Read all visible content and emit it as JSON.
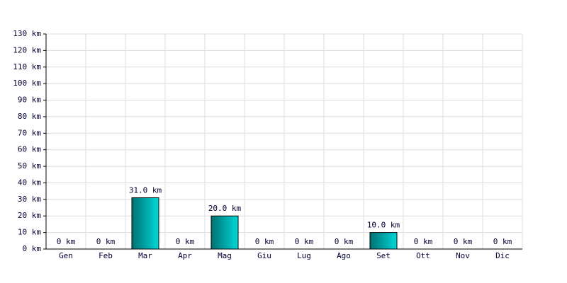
{
  "chart_data": {
    "type": "bar",
    "categories": [
      "Gen",
      "Feb",
      "Mar",
      "Apr",
      "Mag",
      "Giu",
      "Lug",
      "Ago",
      "Set",
      "Ott",
      "Nov",
      "Dic"
    ],
    "values": [
      0,
      0,
      31,
      0,
      20,
      0,
      0,
      0,
      10,
      0,
      0,
      0
    ],
    "value_labels": [
      "0 km",
      "0 km",
      "31.0 km",
      "0 km",
      "20.0 km",
      "0 km",
      "0 km",
      "0 km",
      "10.0 km",
      "0 km",
      "0 km",
      "0 km"
    ],
    "color": "#00d8d8",
    "ylim": [
      0,
      130
    ],
    "yticks": [
      {
        "value": 0,
        "label": "0 km"
      },
      {
        "value": 10,
        "label": "10 km"
      },
      {
        "value": 20,
        "label": "20 km"
      },
      {
        "value": 30,
        "label": "30 km"
      },
      {
        "value": 40,
        "label": "40 km"
      },
      {
        "value": 50,
        "label": "50 km"
      },
      {
        "value": 60,
        "label": "60 km"
      },
      {
        "value": 70,
        "label": "70 km"
      },
      {
        "value": 80,
        "label": "80 km"
      },
      {
        "value": 90,
        "label": "90 km"
      },
      {
        "value": 100,
        "label": "100 km"
      },
      {
        "value": 110,
        "label": "110 km"
      },
      {
        "value": 120,
        "label": "120 km"
      },
      {
        "value": 130,
        "label": "130 km"
      }
    ],
    "grid": true
  }
}
